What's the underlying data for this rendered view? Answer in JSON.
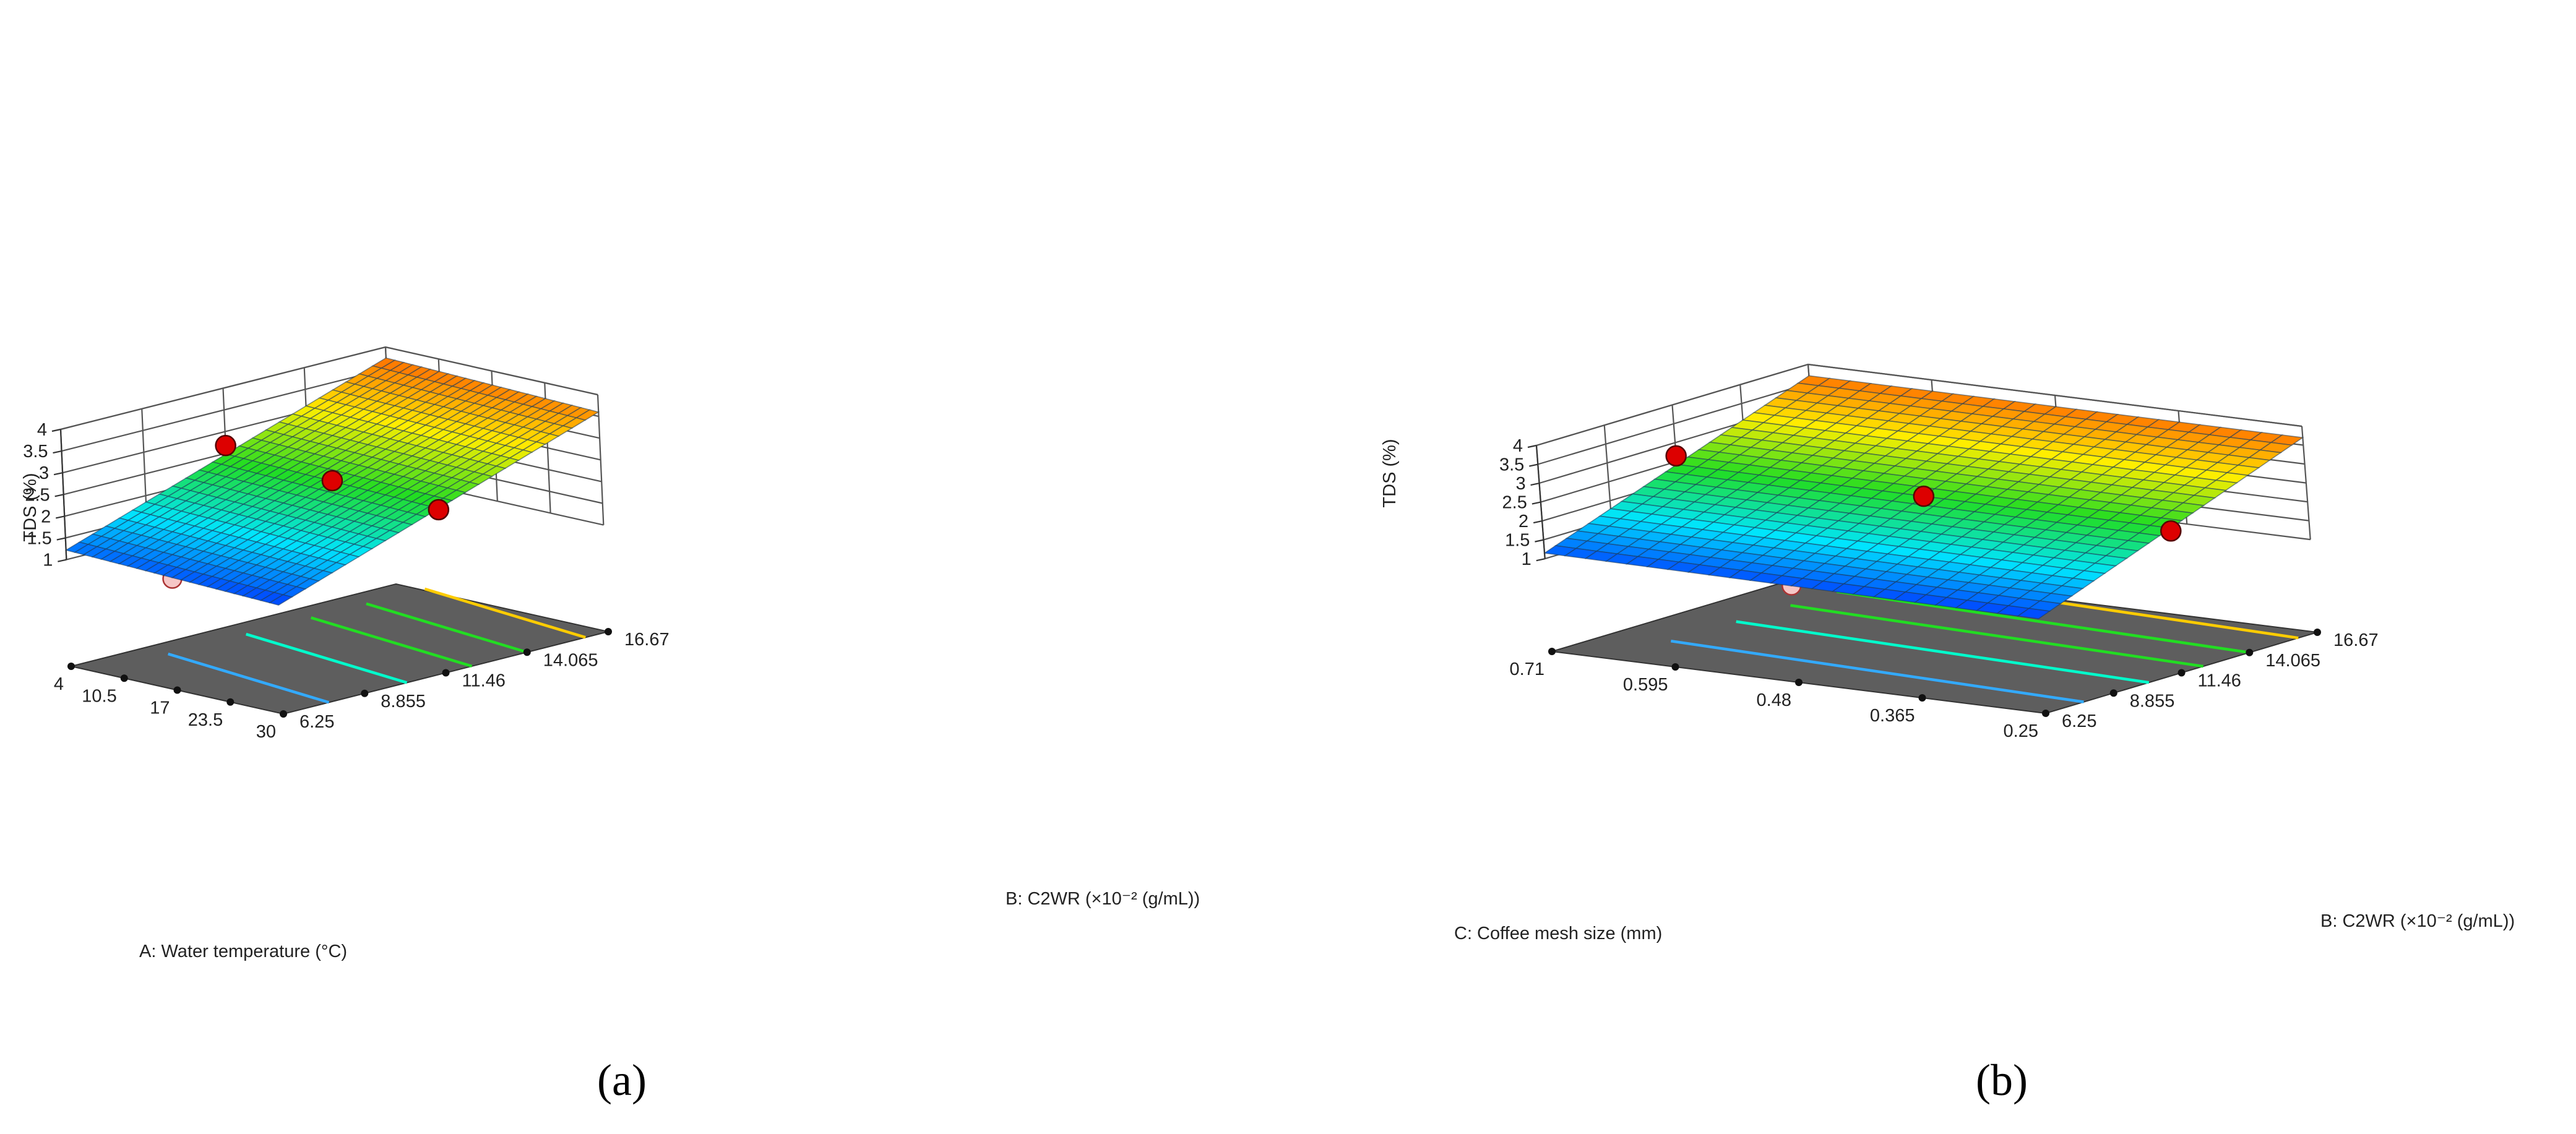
{
  "charts": [
    {
      "panel_label": "(a)",
      "z_label": "TDS (%)",
      "x_label": "A: Water temperature (°C)",
      "y_label": "B: C2WR (×10⁻² (g/mL))",
      "z_ticks": [
        "1",
        "1.5",
        "2",
        "2.5",
        "3",
        "3.5",
        "4"
      ],
      "x_ticks": [
        "4",
        "10.5",
        "17",
        "23.5",
        "30"
      ],
      "y_ticks": [
        "6.25",
        "8.855",
        "11.46",
        "14.065",
        "16.67"
      ]
    },
    {
      "panel_label": "(b)",
      "z_label": "TDS (%)",
      "x_label": "C: Coffee mesh size (mm)",
      "y_label": "B: C2WR (×10⁻² (g/mL))",
      "z_ticks": [
        "1",
        "1.5",
        "2",
        "2.5",
        "3",
        "3.5",
        "4"
      ],
      "x_ticks": [
        "0.71",
        "0.595",
        "0.48",
        "0.365",
        "0.25"
      ],
      "y_ticks": [
        "6.25",
        "8.855",
        "11.46",
        "14.065",
        "16.67"
      ]
    }
  ],
  "chart_data": [
    {
      "type": "surface",
      "title": "",
      "x_axis": {
        "label": "A: Water temperature (°C)",
        "range": [
          4,
          30
        ],
        "ticks": [
          4,
          10.5,
          17,
          23.5,
          30
        ]
      },
      "y_axis": {
        "label": "B: C2WR (×10⁻² (g/mL))",
        "range": [
          6.25,
          16.67
        ],
        "ticks": [
          6.25,
          8.855,
          11.46,
          14.065,
          16.67
        ]
      },
      "z_axis": {
        "label": "TDS (%)",
        "range": [
          1,
          4
        ],
        "ticks": [
          1,
          1.5,
          2,
          2.5,
          3,
          3.5,
          4
        ]
      },
      "surface_corners": [
        {
          "x": 4,
          "y": 6.25,
          "z": 1.22
        },
        {
          "x": 30,
          "y": 6.25,
          "z": 1.05
        },
        {
          "x": 4,
          "y": 16.67,
          "z": 3.75
        },
        {
          "x": 30,
          "y": 16.67,
          "z": 3.6
        }
      ],
      "surface_colormap": [
        "#0033ff",
        "#00e5ff",
        "#22dd22",
        "#ffee00",
        "#ff6600"
      ],
      "contour_colors": [
        "#33aaff",
        "#00ffcc",
        "#22dd22",
        "#22dd22",
        "#ffcc00"
      ],
      "design_points": [
        {
          "x": 4,
          "y": 11.46,
          "z": 2.68,
          "above_surface": true
        },
        {
          "x": 17,
          "y": 11.46,
          "z": 2.42,
          "above_surface": true
        },
        {
          "x": 30,
          "y": 11.46,
          "z": 2.3,
          "above_surface": true
        },
        {
          "x": 17,
          "y": 6.25,
          "z": 0.8,
          "above_surface": false
        }
      ],
      "grid": true
    },
    {
      "type": "surface",
      "title": "",
      "x_axis": {
        "label": "C: Coffee mesh size (mm)",
        "range": [
          0.71,
          0.25
        ],
        "ticks": [
          0.71,
          0.595,
          0.48,
          0.365,
          0.25
        ]
      },
      "y_axis": {
        "label": "B: C2WR (×10⁻² (g/mL))",
        "range": [
          6.25,
          16.67
        ],
        "ticks": [
          6.25,
          8.855,
          11.46,
          14.065,
          16.67
        ]
      },
      "z_axis": {
        "label": "TDS (%)",
        "range": [
          1,
          4
        ],
        "ticks": [
          1,
          1.5,
          2,
          2.5,
          3,
          3.5,
          4
        ]
      },
      "surface_corners": [
        {
          "x": 0.71,
          "y": 6.25,
          "z": 1.15
        },
        {
          "x": 0.25,
          "y": 6.25,
          "z": 1.05
        },
        {
          "x": 0.71,
          "y": 16.67,
          "z": 3.7
        },
        {
          "x": 0.25,
          "y": 16.67,
          "z": 3.7
        }
      ],
      "surface_colormap": [
        "#0033ff",
        "#00e5ff",
        "#22dd22",
        "#ffee00",
        "#ff6600"
      ],
      "contour_colors": [
        "#33aaff",
        "#00ffcc",
        "#22dd22",
        "#22dd22",
        "#ffcc00"
      ],
      "design_points": [
        {
          "x": 0.71,
          "y": 11.46,
          "z": 2.65,
          "above_surface": true
        },
        {
          "x": 0.48,
          "y": 11.46,
          "z": 2.4,
          "above_surface": true
        },
        {
          "x": 0.25,
          "y": 11.46,
          "z": 2.3,
          "above_surface": true
        },
        {
          "x": 0.48,
          "y": 6.25,
          "z": 0.8,
          "above_surface": false
        }
      ],
      "grid": true
    }
  ]
}
